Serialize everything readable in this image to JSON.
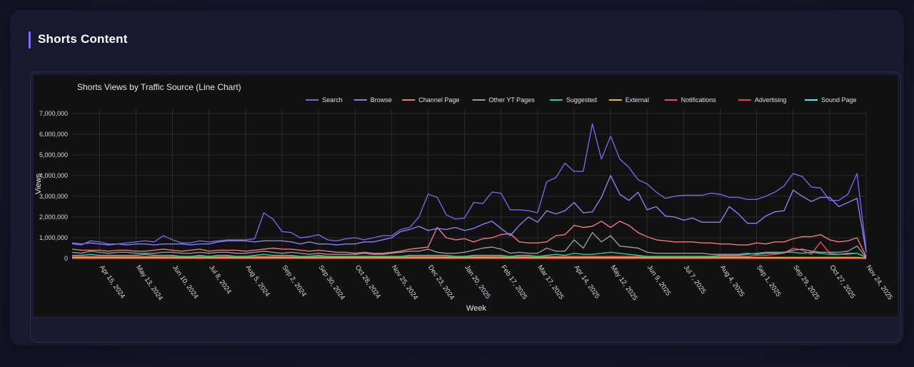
{
  "section": {
    "title": "Shorts Content"
  },
  "colors": {
    "accent": "#7b6cf0",
    "plot_bg": "#111111"
  },
  "chart_data": {
    "type": "line",
    "title": "Shorts Views by Traffic Source (Line Chart)",
    "xlabel": "Week",
    "ylabel": "Views",
    "ylim": [
      0,
      7200000
    ],
    "yticks": [
      0,
      1000000,
      2000000,
      3000000,
      4000000,
      5000000,
      6000000,
      7000000
    ],
    "yticklabels": [
      "0",
      "1,000,000",
      "2,000,000",
      "3,000,000",
      "4,000,000",
      "5,000,000",
      "6,000,000",
      "7,000,000"
    ],
    "xlim": [
      "2024-03-25",
      "2025-11-24"
    ],
    "xticks": [
      "2024-04-15",
      "2024-05-13",
      "2024-06-10",
      "2024-07-08",
      "2024-08-05",
      "2024-09-02",
      "2024-09-30",
      "2024-10-28",
      "2024-11-25",
      "2024-12-23",
      "2025-01-20",
      "2025-02-17",
      "2025-03-17",
      "2025-04-14",
      "2025-05-12",
      "2025-06-09",
      "2025-07-07",
      "2025-08-04",
      "2025-09-01",
      "2025-09-29",
      "2025-10-27",
      "2025-11-24"
    ],
    "xticklabels": [
      "Apr 15, 2024",
      "May 13, 2024",
      "Jun 10, 2024",
      "Jul 8, 2024",
      "Aug 5, 2024",
      "Sep 2, 2024",
      "Sep 30, 2024",
      "Oct 28, 2024",
      "Nov 25, 2024",
      "Dec 23, 2024",
      "Jan 20, 2025",
      "Feb 17, 2025",
      "Mar 17, 2025",
      "Apr 14, 2025",
      "May 12, 2025",
      "Jun 9, 2025",
      "Jul 7, 2025",
      "Aug 4, 2025",
      "Sep 1, 2025",
      "Sep 29, 2025",
      "Oct 27, 2025",
      "Nov 24, 2025"
    ],
    "grid": true,
    "legend_position": "top-right",
    "x_start": "2024-03-25",
    "x_step_days": 7,
    "series": [
      {
        "name": "Search",
        "color": "#7367e3",
        "values": [
          700000,
          650000,
          850000,
          800000,
          700000,
          700000,
          750000,
          800000,
          850000,
          800000,
          1100000,
          900000,
          750000,
          750000,
          850000,
          800000,
          850000,
          900000,
          900000,
          900000,
          950000,
          2200000,
          1900000,
          1300000,
          1250000,
          1000000,
          1050000,
          1150000,
          900000,
          850000,
          950000,
          1000000,
          900000,
          1000000,
          1100000,
          1100000,
          1400000,
          1500000,
          2000000,
          3100000,
          2950000,
          2100000,
          1900000,
          1950000,
          2700000,
          2650000,
          3200000,
          3150000,
          2350000,
          2350000,
          2300000,
          2200000,
          3700000,
          3900000,
          4600000,
          4200000,
          4200000,
          6500000,
          4800000,
          5900000,
          4800000,
          4400000,
          3800000,
          3600000,
          3200000,
          2900000,
          3000000,
          3050000,
          3050000,
          3050000,
          3150000,
          3100000,
          2950000,
          2950000,
          2850000,
          2850000,
          3000000,
          3200000,
          3500000,
          4100000,
          3950000,
          3450000,
          3400000,
          2800000,
          2800000,
          3100000,
          4100000,
          400000
        ]
      },
      {
        "name": "Browse",
        "color": "#8a80f2",
        "values": [
          750000,
          700000,
          750000,
          700000,
          650000,
          700000,
          650000,
          700000,
          700000,
          650000,
          700000,
          700000,
          700000,
          650000,
          700000,
          700000,
          800000,
          850000,
          850000,
          850000,
          800000,
          850000,
          850000,
          850000,
          800000,
          700000,
          800000,
          700000,
          700000,
          650000,
          700000,
          700000,
          800000,
          800000,
          900000,
          1000000,
          1300000,
          1400000,
          1550000,
          1350000,
          1450000,
          1400000,
          1500000,
          1350000,
          1450000,
          1650000,
          1800000,
          1450000,
          1100000,
          1600000,
          2000000,
          1750000,
          2300000,
          2150000,
          2300000,
          2700000,
          2200000,
          2250000,
          2950000,
          4000000,
          3100000,
          2800000,
          3200000,
          2350000,
          2500000,
          2050000,
          2000000,
          1850000,
          1950000,
          1750000,
          1750000,
          1750000,
          2500000,
          2150000,
          1700000,
          1700000,
          2050000,
          2250000,
          2300000,
          3300000,
          3000000,
          2750000,
          2950000,
          2950000,
          2500000,
          2700000,
          2900000,
          300000
        ]
      },
      {
        "name": "Channel Page",
        "color": "#f07886",
        "values": [
          450000,
          400000,
          400000,
          400000,
          350000,
          400000,
          400000,
          350000,
          350000,
          400000,
          450000,
          400000,
          350000,
          400000,
          450000,
          350000,
          400000,
          400000,
          400000,
          350000,
          400000,
          450000,
          500000,
          450000,
          450000,
          400000,
          350000,
          400000,
          350000,
          300000,
          300000,
          250000,
          300000,
          250000,
          250000,
          300000,
          350000,
          450000,
          500000,
          550000,
          1500000,
          1000000,
          900000,
          950000,
          800000,
          950000,
          1000000,
          1150000,
          1200000,
          800000,
          750000,
          750000,
          800000,
          1100000,
          1150000,
          1600000,
          1500000,
          1550000,
          1800000,
          1500000,
          1800000,
          1600000,
          1250000,
          1050000,
          900000,
          850000,
          800000,
          800000,
          800000,
          750000,
          750000,
          700000,
          700000,
          650000,
          650000,
          750000,
          700000,
          800000,
          800000,
          950000,
          1050000,
          1050000,
          1150000,
          900000,
          800000,
          850000,
          1000000,
          100000
        ]
      },
      {
        "name": "Other YT Pages",
        "color": "#9b9b9b",
        "values": [
          300000,
          250000,
          350000,
          300000,
          250000,
          300000,
          300000,
          250000,
          250000,
          250000,
          300000,
          300000,
          250000,
          250000,
          300000,
          250000,
          300000,
          300000,
          250000,
          250000,
          300000,
          350000,
          300000,
          250000,
          300000,
          250000,
          200000,
          250000,
          200000,
          200000,
          200000,
          200000,
          250000,
          200000,
          200000,
          250000,
          300000,
          350000,
          350000,
          450000,
          300000,
          250000,
          250000,
          300000,
          400000,
          500000,
          550000,
          450000,
          250000,
          300000,
          250000,
          250000,
          500000,
          350000,
          350000,
          900000,
          500000,
          1250000,
          800000,
          1100000,
          600000,
          550000,
          500000,
          300000,
          250000,
          250000,
          250000,
          250000,
          250000,
          250000,
          200000,
          200000,
          200000,
          200000,
          250000,
          200000,
          250000,
          250000,
          300000,
          400000,
          450000,
          350000,
          300000,
          300000,
          300000,
          350000,
          600000,
          50000
        ]
      },
      {
        "name": "Suggested",
        "color": "#2fc7a0",
        "values": [
          150000,
          150000,
          200000,
          150000,
          150000,
          150000,
          150000,
          150000,
          200000,
          150000,
          150000,
          150000,
          100000,
          100000,
          150000,
          100000,
          150000,
          150000,
          100000,
          100000,
          150000,
          200000,
          150000,
          150000,
          150000,
          100000,
          100000,
          150000,
          100000,
          100000,
          100000,
          100000,
          100000,
          100000,
          100000,
          100000,
          100000,
          150000,
          150000,
          150000,
          150000,
          150000,
          100000,
          100000,
          150000,
          150000,
          150000,
          150000,
          100000,
          150000,
          150000,
          100000,
          150000,
          200000,
          150000,
          250000,
          200000,
          200000,
          250000,
          300000,
          250000,
          200000,
          150000,
          100000,
          100000,
          100000,
          100000,
          100000,
          100000,
          100000,
          100000,
          150000,
          150000,
          150000,
          200000,
          250000,
          300000,
          300000,
          300000,
          300000,
          250000,
          300000,
          250000,
          200000,
          200000,
          250000,
          250000,
          50000
        ]
      },
      {
        "name": "External",
        "color": "#e3b83e",
        "values": [
          50000,
          50000,
          50000,
          50000,
          50000,
          50000,
          50000,
          50000,
          50000,
          50000,
          50000,
          50000,
          50000,
          50000,
          50000,
          50000,
          50000,
          50000,
          50000,
          50000,
          50000,
          50000,
          50000,
          50000,
          50000,
          50000,
          50000,
          50000,
          50000,
          50000,
          50000,
          50000,
          50000,
          50000,
          50000,
          50000,
          50000,
          50000,
          50000,
          50000,
          50000,
          50000,
          50000,
          50000,
          50000,
          50000,
          50000,
          50000,
          50000,
          50000,
          50000,
          50000,
          50000,
          50000,
          50000,
          50000,
          50000,
          50000,
          50000,
          50000,
          50000,
          50000,
          50000,
          50000,
          50000,
          50000,
          50000,
          50000,
          50000,
          50000,
          50000,
          50000,
          50000,
          50000,
          50000,
          50000,
          50000,
          50000,
          50000,
          50000,
          50000,
          50000,
          50000,
          50000,
          50000,
          50000,
          50000,
          20000
        ]
      },
      {
        "name": "Notifications",
        "color": "#e84a6c",
        "values": [
          100000,
          100000,
          100000,
          100000,
          100000,
          100000,
          100000,
          100000,
          100000,
          100000,
          100000,
          100000,
          100000,
          100000,
          100000,
          100000,
          100000,
          100000,
          100000,
          100000,
          100000,
          100000,
          100000,
          100000,
          100000,
          100000,
          100000,
          100000,
          100000,
          100000,
          100000,
          100000,
          100000,
          100000,
          100000,
          100000,
          100000,
          100000,
          100000,
          100000,
          100000,
          100000,
          100000,
          100000,
          100000,
          100000,
          100000,
          100000,
          100000,
          100000,
          100000,
          100000,
          100000,
          100000,
          100000,
          100000,
          100000,
          100000,
          100000,
          100000,
          100000,
          100000,
          100000,
          100000,
          100000,
          100000,
          100000,
          100000,
          100000,
          100000,
          100000,
          100000,
          100000,
          100000,
          100000,
          150000,
          150000,
          200000,
          250000,
          500000,
          400000,
          200000,
          800000,
          250000,
          200000,
          200000,
          250000,
          50000
        ]
      },
      {
        "name": "Advertising",
        "color": "#e04258",
        "values": [
          0,
          0,
          0,
          0,
          0,
          0,
          0,
          0,
          0,
          0,
          0,
          0,
          0,
          0,
          0,
          0,
          0,
          0,
          0,
          0,
          0,
          0,
          0,
          0,
          0,
          0,
          0,
          0,
          0,
          0,
          0,
          0,
          0,
          0,
          0,
          0,
          0,
          0,
          0,
          0,
          0,
          0,
          0,
          0,
          0,
          0,
          0,
          0,
          0,
          0,
          0,
          0,
          0,
          0,
          0,
          0,
          0,
          0,
          0,
          0,
          0,
          0,
          0,
          0,
          0,
          0,
          0,
          0,
          0,
          0,
          0,
          0,
          0,
          0,
          0,
          0,
          0,
          0,
          0,
          0,
          0,
          0,
          0,
          0,
          0,
          0,
          0,
          0
        ]
      },
      {
        "name": "Sound Page",
        "color": "#6fe0e6",
        "values": [
          30000,
          30000,
          30000,
          30000,
          30000,
          30000,
          30000,
          30000,
          30000,
          30000,
          30000,
          30000,
          30000,
          30000,
          30000,
          30000,
          30000,
          30000,
          30000,
          30000,
          30000,
          30000,
          30000,
          30000,
          30000,
          30000,
          30000,
          30000,
          30000,
          30000,
          30000,
          30000,
          30000,
          30000,
          30000,
          30000,
          30000,
          30000,
          30000,
          30000,
          30000,
          30000,
          30000,
          30000,
          30000,
          30000,
          30000,
          30000,
          30000,
          30000,
          30000,
          30000,
          30000,
          30000,
          30000,
          30000,
          30000,
          30000,
          30000,
          30000,
          30000,
          30000,
          30000,
          30000,
          30000,
          30000,
          30000,
          30000,
          30000,
          30000,
          30000,
          30000,
          30000,
          30000,
          30000,
          30000,
          30000,
          30000,
          30000,
          30000,
          30000,
          30000,
          30000,
          30000,
          30000,
          30000,
          30000,
          10000
        ]
      }
    ]
  }
}
